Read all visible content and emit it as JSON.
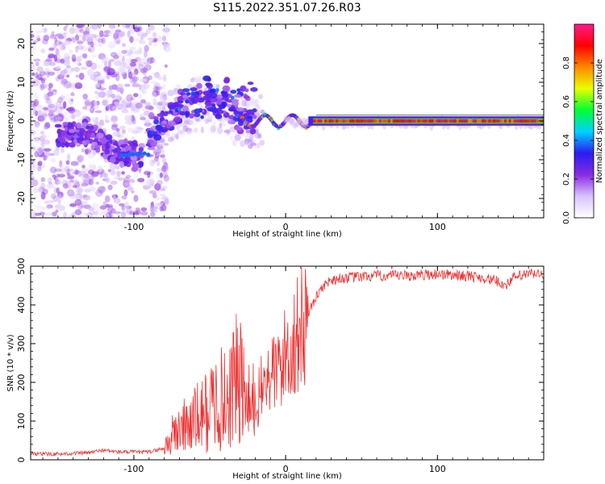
{
  "title": "S115.2022.351.07.26.R03",
  "chart_data": [
    {
      "type": "heatmap",
      "xlabel": "Height of straight line (km)",
      "ylabel": "Frequency (Hz)",
      "xlim": [
        -168,
        170
      ],
      "ylim": [
        -25,
        25
      ],
      "x_ticks": [
        -100,
        0,
        100
      ],
      "x_tick_labels": [
        "-100",
        "0",
        "100"
      ],
      "y_ticks": [
        -20,
        -10,
        0,
        10,
        20
      ],
      "y_tick_labels": [
        "-20",
        "-10",
        "0",
        "10",
        "20"
      ],
      "colorbar": {
        "label": "Normalized spectral amplitude",
        "range": [
          0,
          1
        ],
        "ticks": [
          0.0,
          0.2,
          0.4,
          0.6,
          0.8
        ],
        "tick_labels": [
          "0.0",
          "0.2",
          "0.4",
          "0.6",
          "0.8"
        ],
        "colormap": [
          "#ffffff",
          "#d9c3ff",
          "#8a2be2",
          "#2a1cf0",
          "#00d2ff",
          "#00ff33",
          "#e8ff00",
          "#ff8800",
          "#ff0000",
          "#ff1a8c"
        ]
      },
      "ridge": [
        {
          "x": -155,
          "y": -4
        },
        {
          "x": -130,
          "y": -3
        },
        {
          "x": -110,
          "y": -8.5
        },
        {
          "x": -95,
          "y": -8.5
        },
        {
          "x": -85,
          "y": -2
        },
        {
          "x": -65,
          "y": 4
        },
        {
          "x": -50,
          "y": 5
        },
        {
          "x": -40,
          "y": 3
        },
        {
          "x": -30,
          "y": 0
        },
        {
          "x": -15,
          "y": 0
        },
        {
          "x": 0,
          "y": 0
        },
        {
          "x": 50,
          "y": 0
        },
        {
          "x": 100,
          "y": 0
        },
        {
          "x": 150,
          "y": 0
        },
        {
          "x": 170,
          "y": 0
        }
      ]
    },
    {
      "type": "line",
      "xlabel": "Height of straight line (km)",
      "ylabel": "SNR (10 * v/v)",
      "xlim": [
        -168,
        170
      ],
      "ylim": [
        0,
        500
      ],
      "x_ticks": [
        -100,
        0,
        100
      ],
      "x_tick_labels": [
        "-100",
        "0",
        "100"
      ],
      "y_ticks": [
        0,
        100,
        200,
        300,
        400,
        500
      ],
      "y_tick_labels": [
        "0",
        "100",
        "200",
        "300",
        "400",
        "500"
      ],
      "series": [
        {
          "color": "#ee3333",
          "x": [
            -168,
            -150,
            -130,
            -120,
            -110,
            -100,
            -90,
            -80,
            -75,
            -70,
            -60,
            -50,
            -45,
            -40,
            -35,
            -30,
            -25,
            -20,
            -15,
            -10,
            -5,
            0,
            5,
            10,
            15,
            20,
            25,
            30,
            40,
            60,
            80,
            100,
            120,
            130,
            140,
            145,
            150,
            160,
            170
          ],
          "y": [
            15,
            15,
            18,
            25,
            20,
            20,
            20,
            30,
            60,
            80,
            100,
            130,
            160,
            150,
            200,
            200,
            130,
            140,
            190,
            220,
            230,
            270,
            300,
            330,
            380,
            420,
            450,
            465,
            470,
            475,
            475,
            480,
            475,
            470,
            460,
            450,
            470,
            480,
            480
          ]
        }
      ]
    }
  ]
}
